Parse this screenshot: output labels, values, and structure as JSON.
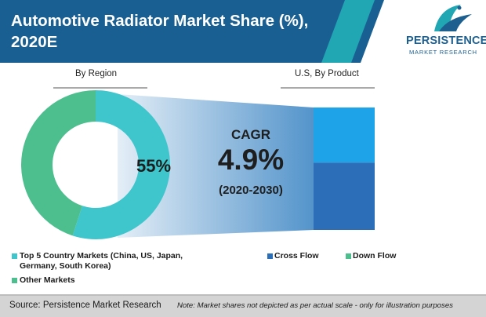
{
  "header": {
    "title_line1": "Automotive Radiator Market Share (%),",
    "title_line2": "2020E",
    "logo_word": "PERSISTENCE",
    "logo_sub": "MARKET RESEARCH"
  },
  "colors": {
    "header_dark": "#1a5f92",
    "header_teal": "#21a6b4",
    "top5": "#3ec6cc",
    "other": "#4dbf8e",
    "cross_flow": "#2c6fb8",
    "down_flow": "#1fa3e8",
    "wedge": "#4a8ec8"
  },
  "cagr": {
    "label": "CAGR",
    "value": "4.9%",
    "period": "(2020-2030)"
  },
  "chart_data": [
    {
      "type": "pie",
      "title": "By Region",
      "donut": true,
      "labels": [
        "Top 5 Country Markets (China, US, Japan, Germany, South Korea)",
        "Other Markets"
      ],
      "values": [
        55,
        45
      ],
      "data_label": "55%"
    },
    {
      "type": "bar",
      "stacked": true,
      "title": "U.S, By Product",
      "categories": [
        "U.S"
      ],
      "series": [
        {
          "name": "Cross Flow",
          "values": [
            55
          ]
        },
        {
          "name": "Down Flow",
          "values": [
            45
          ]
        }
      ]
    }
  ],
  "legend": {
    "top5": "Top 5 Country Markets (China, US, Japan, Germany, South Korea)",
    "other": "Other Markets",
    "cross": "Cross Flow",
    "down": "Down Flow"
  },
  "footer": {
    "source": "Source: Persistence Market Research",
    "note": "Note: Market shares not depicted as per actual scale - only for illustration purposes"
  }
}
